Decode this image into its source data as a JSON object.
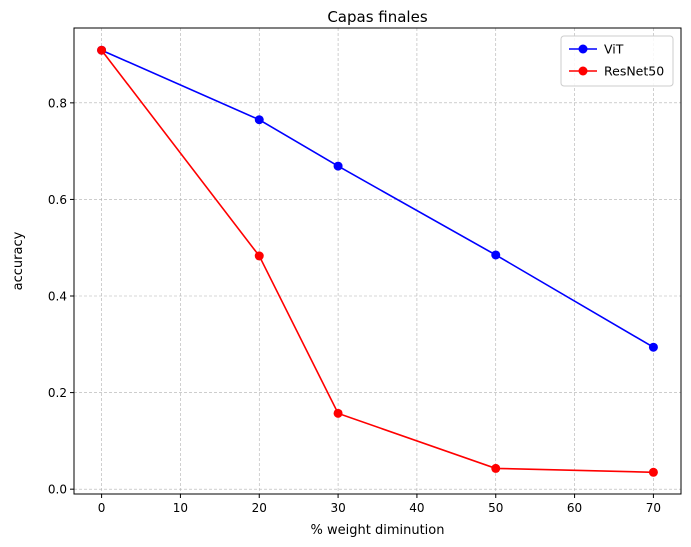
{
  "chart_data": {
    "type": "line",
    "title": "Capas finales",
    "xlabel": "% weight diminution",
    "ylabel": "accuracy",
    "x": [
      0,
      20,
      30,
      50,
      70
    ],
    "xlim": [
      -3.5,
      73.5
    ],
    "ylim": [
      -0.01,
      0.955
    ],
    "xticks": [
      0,
      10,
      20,
      30,
      40,
      50,
      60,
      70
    ],
    "yticks": [
      0.0,
      0.2,
      0.4,
      0.6,
      0.8
    ],
    "xtick_labels": [
      "0",
      "10",
      "20",
      "30",
      "40",
      "50",
      "60",
      "70"
    ],
    "ytick_labels": [
      "0.0",
      "0.2",
      "0.4",
      "0.6",
      "0.8"
    ],
    "grid": true,
    "legend_position": "top-right",
    "series": [
      {
        "name": "ViT",
        "color": "#0000ff",
        "marker": "circle",
        "values": [
          0.909,
          0.765,
          0.669,
          0.485,
          0.294
        ]
      },
      {
        "name": "ResNet50",
        "color": "#ff0000",
        "marker": "circle",
        "values": [
          0.909,
          0.483,
          0.157,
          0.043,
          0.035
        ]
      }
    ]
  }
}
